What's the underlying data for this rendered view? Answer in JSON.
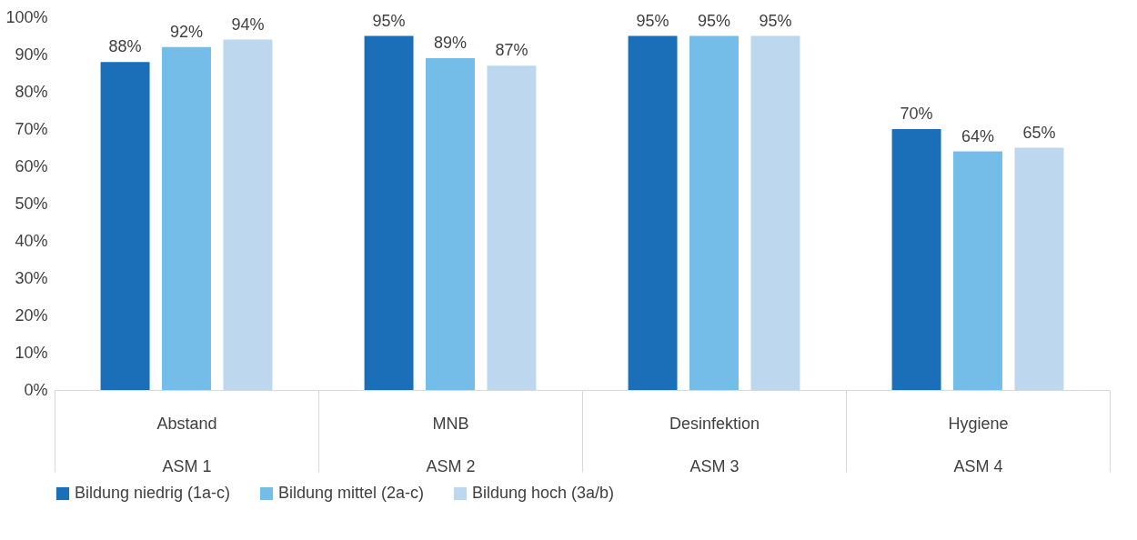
{
  "chart_data": {
    "type": "bar",
    "categories": [
      "Abstand\nASM 1",
      "MNB\nASM 2",
      "Desinfektion\nASM 3",
      "Hygiene\nASM 4"
    ],
    "series": [
      {
        "name": "Bildung niedrig (1a-c)",
        "color": "#1a6fb8",
        "values": [
          88,
          95,
          95,
          70
        ],
        "value_labels": [
          "88%",
          "95%",
          "95%",
          "70%"
        ]
      },
      {
        "name": "Bildung mittel (2a-c)",
        "color": "#75bde9",
        "values": [
          92,
          89,
          95,
          64
        ],
        "value_labels": [
          "92%",
          "89%",
          "95%",
          "64%"
        ]
      },
      {
        "name": "Bildung hoch (3a/b)",
        "color": "#bcd7ee",
        "values": [
          94,
          87,
          95,
          65
        ],
        "value_labels": [
          "94%",
          "87%",
          "95%",
          "65%"
        ]
      }
    ],
    "ylim": [
      0,
      100
    ],
    "yticks": [
      {
        "value": 0,
        "label": "0%"
      },
      {
        "value": 10,
        "label": "10%"
      },
      {
        "value": 20,
        "label": "20%"
      },
      {
        "value": 30,
        "label": "30%"
      },
      {
        "value": 40,
        "label": "40%"
      },
      {
        "value": 50,
        "label": "50%"
      },
      {
        "value": 60,
        "label": "60%"
      },
      {
        "value": 70,
        "label": "70%"
      },
      {
        "value": 80,
        "label": "80%"
      },
      {
        "value": 90,
        "label": "90%"
      },
      {
        "value": 100,
        "label": "100%"
      }
    ],
    "grid": false,
    "legend": "bottom"
  }
}
